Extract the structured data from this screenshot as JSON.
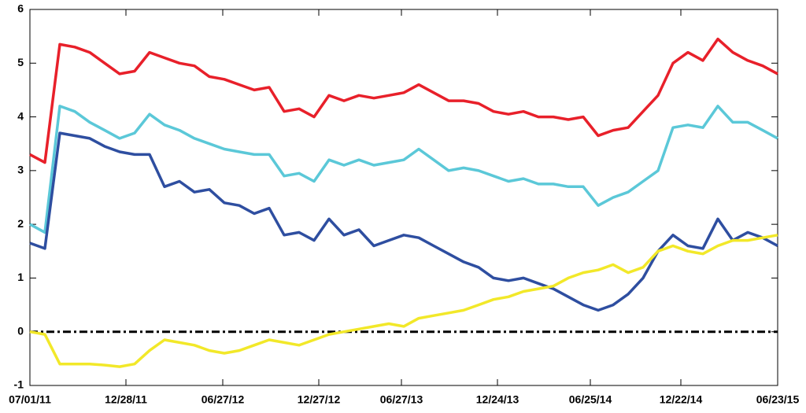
{
  "chart_data": {
    "type": "line",
    "x": [
      0,
      19,
      38,
      57,
      76,
      95,
      114,
      133,
      152,
      171,
      190,
      209,
      228,
      247,
      266,
      285,
      304,
      323,
      342,
      361,
      380,
      399,
      418,
      437,
      456,
      475,
      494,
      513,
      532,
      551,
      570,
      589,
      608,
      627,
      646,
      665,
      684,
      703,
      722,
      741,
      760,
      779,
      798,
      817,
      836,
      855,
      874,
      893,
      912,
      931,
      950
    ],
    "series": [
      {
        "color": "#e8202a",
        "values": [
          3.3,
          3.15,
          5.35,
          5.3,
          5.2,
          5.0,
          4.8,
          4.85,
          5.2,
          5.1,
          5.0,
          4.95,
          4.75,
          4.7,
          4.6,
          4.5,
          4.55,
          4.1,
          4.15,
          4.0,
          4.4,
          4.3,
          4.4,
          4.35,
          4.4,
          4.45,
          4.6,
          4.45,
          4.3,
          4.3,
          4.25,
          4.1,
          4.05,
          4.1,
          4.0,
          4.0,
          3.95,
          4.0,
          3.65,
          3.75,
          3.8,
          4.1,
          4.4,
          5.0,
          5.2,
          5.05,
          5.45,
          5.2,
          5.05,
          4.95,
          4.8
        ]
      },
      {
        "color": "#5bc8d8",
        "values": [
          2.0,
          1.85,
          4.2,
          4.1,
          3.9,
          3.75,
          3.6,
          3.7,
          4.05,
          3.85,
          3.75,
          3.6,
          3.5,
          3.4,
          3.35,
          3.3,
          3.3,
          2.9,
          2.95,
          2.8,
          3.2,
          3.1,
          3.2,
          3.1,
          3.15,
          3.2,
          3.4,
          3.2,
          3.0,
          3.05,
          3.0,
          2.9,
          2.8,
          2.85,
          2.75,
          2.75,
          2.7,
          2.7,
          2.35,
          2.5,
          2.6,
          2.8,
          3.0,
          3.8,
          3.85,
          3.8,
          4.2,
          3.9,
          3.9,
          3.75,
          3.6
        ]
      },
      {
        "color": "#2e4ea0",
        "values": [
          1.65,
          1.55,
          3.7,
          3.65,
          3.6,
          3.45,
          3.35,
          3.3,
          3.3,
          2.7,
          2.8,
          2.6,
          2.65,
          2.4,
          2.35,
          2.2,
          2.3,
          1.8,
          1.85,
          1.7,
          2.1,
          1.8,
          1.9,
          1.6,
          1.7,
          1.8,
          1.75,
          1.6,
          1.45,
          1.3,
          1.2,
          1.0,
          0.95,
          1.0,
          0.9,
          0.8,
          0.65,
          0.5,
          0.4,
          0.5,
          0.7,
          1.0,
          1.5,
          1.8,
          1.6,
          1.55,
          2.1,
          1.7,
          1.85,
          1.75,
          1.6
        ]
      },
      {
        "color": "#f2e829",
        "values": [
          0.0,
          -0.05,
          -0.6,
          -0.6,
          -0.6,
          -0.62,
          -0.65,
          -0.6,
          -0.35,
          -0.15,
          -0.2,
          -0.25,
          -0.35,
          -0.4,
          -0.35,
          -0.25,
          -0.15,
          -0.2,
          -0.25,
          -0.15,
          -0.05,
          0.0,
          0.05,
          0.1,
          0.15,
          0.1,
          0.25,
          0.3,
          0.35,
          0.4,
          0.5,
          0.6,
          0.65,
          0.75,
          0.8,
          0.85,
          1.0,
          1.1,
          1.15,
          1.25,
          1.1,
          1.2,
          1.5,
          1.6,
          1.5,
          1.45,
          1.6,
          1.7,
          1.7,
          1.75,
          1.8
        ]
      }
    ],
    "reference_line": 0,
    "xlim": [
      0,
      950
    ],
    "xticks": [
      {
        "value": 0,
        "label": "07/01/11"
      },
      {
        "value": 122,
        "label": "12/28/11"
      },
      {
        "value": 245,
        "label": "06/27/12"
      },
      {
        "value": 367,
        "label": "12/27/12"
      },
      {
        "value": 472,
        "label": "06/27/13"
      },
      {
        "value": 594,
        "label": "12/24/13"
      },
      {
        "value": 712,
        "label": "06/25/14"
      },
      {
        "value": 827,
        "label": "12/22/14"
      },
      {
        "value": 950,
        "label": "06/23/15"
      }
    ],
    "ylim": [
      -1,
      6
    ],
    "yticks": [
      -1,
      0,
      1,
      2,
      3,
      4,
      5,
      6
    ]
  }
}
